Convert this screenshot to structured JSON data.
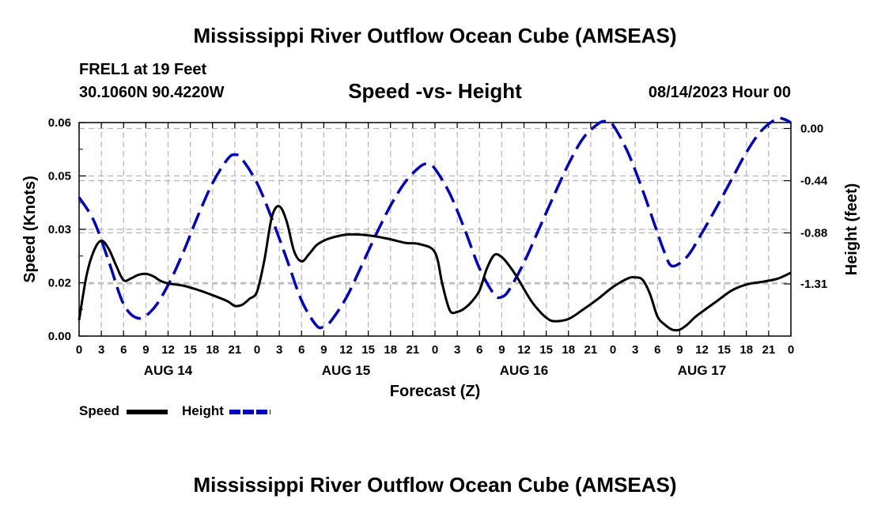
{
  "header": {
    "title": "Mississippi River Outflow Ocean Cube (AMSEAS)",
    "station": "FREL1 at 19 Feet",
    "coordinates": "30.1060N  90.4220W",
    "subtitle": "Speed -vs- Height",
    "datetime": "08/14/2023 Hour 00"
  },
  "footer": {
    "title": "Mississippi River Outflow Ocean Cube (AMSEAS)"
  },
  "legend": {
    "speed_label": "Speed",
    "height_label": "Height"
  },
  "colors": {
    "speed": "#000000",
    "height": "#0000cc",
    "grid": "#b4b4b4"
  },
  "chart_data": {
    "type": "line",
    "title": "Speed -vs- Height",
    "xlabel": "Forecast (Z)",
    "ylabel": "Speed (Knots)",
    "y2label": "Height (feet)",
    "x_range": [
      0,
      96
    ],
    "x_ticks": [
      0,
      3,
      6,
      9,
      12,
      15,
      18,
      21,
      24,
      27,
      30,
      33,
      36,
      39,
      42,
      45,
      48,
      51,
      54,
      57,
      60,
      63,
      66,
      69,
      72,
      75,
      78,
      81,
      84,
      87,
      90,
      93,
      96
    ],
    "x_tick_labels": [
      "0",
      "3",
      "6",
      "9",
      "12",
      "15",
      "18",
      "21",
      "0",
      "3",
      "6",
      "9",
      "12",
      "15",
      "18",
      "21",
      "0",
      "3",
      "6",
      "9",
      "12",
      "15",
      "18",
      "21",
      "0",
      "3",
      "6",
      "9",
      "12",
      "15",
      "18",
      "21",
      "0"
    ],
    "day_labels": [
      {
        "x": 12,
        "label": "AUG 14"
      },
      {
        "x": 36,
        "label": "AUG 15"
      },
      {
        "x": 60,
        "label": "AUG 16"
      },
      {
        "x": 84,
        "label": "AUG 17"
      }
    ],
    "y_range": [
      0,
      0.06
    ],
    "y_ticks": [
      0,
      0.015,
      0.03,
      0.045,
      0.06
    ],
    "y_tick_labels": [
      "0.00",
      "0.02",
      "0.03",
      "0.05",
      "0.06"
    ],
    "y2_range": [
      -1.75,
      0.05
    ],
    "y2_ticks": [
      0,
      -0.44,
      -0.88,
      -1.31
    ],
    "y2_tick_labels": [
      "0.00",
      "-0.44",
      "-0.88",
      "-1.31"
    ],
    "grid": true,
    "legend_position": "bottom-left",
    "series": [
      {
        "name": "Speed",
        "axis": "left",
        "style": "solid",
        "x": [
          0,
          1,
          2,
          3,
          4,
          5,
          6,
          7,
          8,
          9,
          10,
          11,
          12,
          14,
          16,
          18,
          20,
          21,
          22,
          23,
          24,
          25,
          26,
          27,
          28,
          29,
          30,
          31,
          32,
          33,
          34,
          36,
          38,
          40,
          42,
          44,
          46,
          48,
          49,
          50,
          51,
          52,
          53,
          54,
          55,
          56,
          57,
          58,
          59,
          60,
          61,
          62,
          63,
          64,
          66,
          68,
          70,
          72,
          74,
          75,
          76,
          77,
          78,
          79,
          80,
          81,
          82,
          83,
          84,
          86,
          88,
          90,
          92,
          94,
          95,
          96
        ],
        "values": [
          0.0045,
          0.017,
          0.024,
          0.0268,
          0.0245,
          0.0198,
          0.0157,
          0.0162,
          0.0172,
          0.0175,
          0.0168,
          0.0155,
          0.0148,
          0.0142,
          0.013,
          0.0115,
          0.0098,
          0.0085,
          0.0088,
          0.0105,
          0.0125,
          0.0215,
          0.0335,
          0.0365,
          0.0322,
          0.0238,
          0.021,
          0.023,
          0.0255,
          0.0268,
          0.0276,
          0.0285,
          0.0285,
          0.028,
          0.0272,
          0.0262,
          0.0258,
          0.0235,
          0.0145,
          0.0072,
          0.0068,
          0.0078,
          0.0098,
          0.0128,
          0.019,
          0.0228,
          0.0222,
          0.0198,
          0.0168,
          0.0132,
          0.0098,
          0.0072,
          0.0052,
          0.0042,
          0.0048,
          0.0075,
          0.0105,
          0.0138,
          0.0162,
          0.0165,
          0.0158,
          0.0118,
          0.0055,
          0.0032,
          0.0018,
          0.0018,
          0.0032,
          0.0052,
          0.0068,
          0.0098,
          0.0128,
          0.0145,
          0.0152,
          0.016,
          0.0168,
          0.0178
        ]
      },
      {
        "name": "Height",
        "axis": "right",
        "style": "dashed",
        "x": [
          0,
          2,
          4,
          6,
          8,
          10,
          12,
          14,
          16,
          18,
          20,
          21,
          22,
          24,
          26,
          28,
          30,
          32,
          33,
          34,
          36,
          38,
          40,
          42,
          44,
          46,
          47,
          48,
          50,
          52,
          54,
          56,
          57,
          58,
          60,
          62,
          64,
          66,
          68,
          70,
          71,
          72,
          74,
          76,
          78,
          79,
          80,
          82,
          84,
          86,
          88,
          90,
          92,
          94,
          95,
          96
        ],
        "values": [
          -0.58,
          -0.78,
          -1.12,
          -1.48,
          -1.6,
          -1.52,
          -1.32,
          -1.05,
          -0.74,
          -0.46,
          -0.26,
          -0.22,
          -0.26,
          -0.46,
          -0.76,
          -1.1,
          -1.45,
          -1.66,
          -1.67,
          -1.62,
          -1.43,
          -1.17,
          -0.9,
          -0.65,
          -0.45,
          -0.32,
          -0.3,
          -0.34,
          -0.55,
          -0.85,
          -1.18,
          -1.4,
          -1.42,
          -1.36,
          -1.13,
          -0.85,
          -0.57,
          -0.3,
          -0.08,
          0.04,
          0.06,
          0.03,
          -0.2,
          -0.52,
          -0.88,
          -1.05,
          -1.16,
          -1.08,
          -0.88,
          -0.66,
          -0.43,
          -0.2,
          -0.02,
          0.08,
          0.08,
          0.05
        ]
      }
    ]
  }
}
